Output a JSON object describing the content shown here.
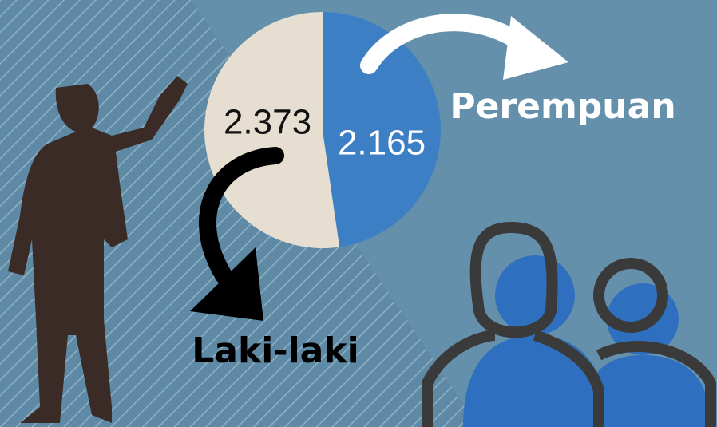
{
  "chart_data": {
    "type": "pie",
    "categories": [
      "Laki-laki",
      "Perempuan"
    ],
    "values": [
      2373,
      2165
    ],
    "value_labels": [
      "2.373",
      "2.165"
    ],
    "colors": [
      "#e6dfd1",
      "#3d7fc4"
    ]
  }
}
